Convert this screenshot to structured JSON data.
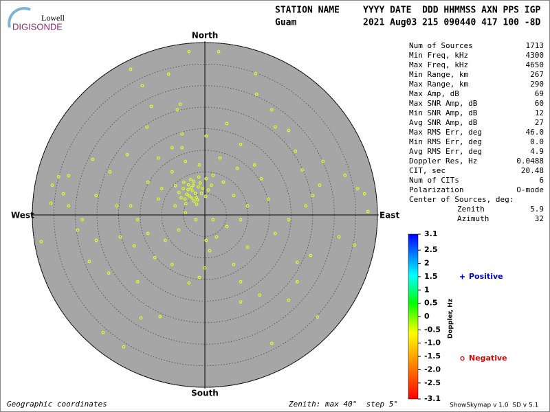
{
  "logo": {
    "top": "Lowell",
    "bottom": "DIGISONDE"
  },
  "header": {
    "row1": [
      "STATION NAME",
      "YYYY DATE  DDD HHMMSS AXN PPS IGP"
    ],
    "row2": [
      "Guam",
      "2021 Aug03 215 090440 417 100 -8D"
    ]
  },
  "stats": {
    "rows": [
      [
        "Num of Sources",
        "1713"
      ],
      [
        "Min Freq, kHz",
        "4300"
      ],
      [
        "Max Freq, kHz",
        "4650"
      ],
      [
        "Min Range, km",
        "267"
      ],
      [
        "Max Range, km",
        "290"
      ],
      [
        "Max Amp, dB",
        "69"
      ],
      [
        "Max SNR Amp, dB",
        "60"
      ],
      [
        "Min SNR Amp, dB",
        "12"
      ],
      [
        "Avg SNR Amp, dB",
        "27"
      ],
      [
        "Max RMS Err, deg",
        "46.0"
      ],
      [
        "Min RMS Err, deg",
        "0.0"
      ],
      [
        "Avg RMS Err, deg",
        "4.9"
      ],
      [
        "Doppler Res, Hz",
        "0.0488"
      ],
      [
        "CIT, sec",
        "20.48"
      ],
      [
        "Num of CITs",
        "6"
      ],
      [
        "Polarization",
        "O-mode"
      ]
    ],
    "center_title": "Center of Sources, deg:",
    "center_rows": [
      [
        "Zenith",
        "5.9"
      ],
      [
        "Azimuth",
        "32"
      ]
    ]
  },
  "footer": {
    "left": "Geographic coordinates",
    "middle": "Zenith: max 40°  step 5°",
    "right": "ShowSkymap v 1.0  SD v 5.1"
  },
  "chart_data": {
    "type": "polar_scatter",
    "directions": {
      "north": "North",
      "south": "South",
      "west": "West",
      "east": "East"
    },
    "xlim": [
      -40,
      40
    ],
    "ylim": [
      -40,
      40
    ],
    "rticks": [
      5,
      10,
      15,
      20,
      25,
      30,
      35,
      40
    ],
    "point_color": "#ddff22",
    "series": [
      {
        "name": "Positive",
        "color": "#0000cc",
        "x": [],
        "values": []
      },
      {
        "name": "Negative",
        "color": "#dd0000",
        "x": [
          -3.7,
          3.2,
          -17.2,
          -14.5,
          -8.4,
          11.8,
          12.0,
          -5.7,
          -13.4,
          16.3,
          -35.4,
          -33.9,
          -35.7,
          -31.6,
          -37.9,
          -29.5,
          -26.8,
          -22.3,
          -14.8,
          -23.6,
          -18.8,
          -10.4,
          -3.7,
          -1.3,
          0,
          8.3,
          12.7,
          15.5,
          19.4,
          21.4,
          26.1,
          24.5,
          31.1,
          34.7,
          35.4,
          37.8,
          37.0,
          32.5,
          26.6,
          27.4,
          22.6,
          21.0,
          19.4,
          15.5,
          5.1,
          0.3,
          -5.3,
          -7.6,
          -10.8,
          -18.0,
          -22.0,
          -25.2,
          -20.4,
          -15.6,
          -13.2,
          -9.2,
          -6.1,
          2.7,
          5.1,
          8.3,
          9.9,
          13.1,
          7.5,
          3.5,
          1.9,
          -10.0,
          -13.2,
          -17.2,
          -28.4,
          -31.6,
          9.9,
          6.7,
          -7.6,
          -11.6,
          -16.4,
          -19.6,
          -25.2,
          16.3,
          19.4,
          23.4,
          25.0,
          14.7,
          0.3,
          1.1,
          1.9,
          -2.1,
          -4.5,
          -12.4,
          -6.4,
          -5.3,
          -4.5,
          -1.3,
          0.3,
          4.3,
          6.7,
          -7.6,
          -10.8,
          -6.9,
          8.3,
          11.5,
          -26.0,
          -32.8,
          21.4,
          8.3,
          -15.6,
          -2.9,
          -1.5,
          -4.2,
          -2.0,
          -3.8,
          -0.8,
          -5.0,
          -2.5,
          -3.3,
          -1.1,
          -4.6,
          0.2,
          -6.0,
          -2.7,
          -1.9,
          -3.6,
          -0.5,
          -4.9,
          -2.2,
          -3.0,
          -1.4,
          -5.5,
          0.8,
          -3.9,
          -2.6,
          -6.8,
          1.5,
          -4.4,
          -1.7,
          -3.2
        ],
        "values": [
          37.9,
          37.9,
          33.8,
          30.0,
          32.7,
          32.8,
          28.0,
          25.7,
          20.4,
          20.4,
          6.9,
          8.9,
          2.7,
          9.1,
          -6.2,
          -3.5,
          -10.8,
          -13.5,
          -23.9,
          -27.3,
          -30.6,
          -23.6,
          -15.8,
          -14.5,
          -12.3,
          -20.2,
          -18.6,
          -29.8,
          -19.8,
          -11.0,
          -23.7,
          -9.4,
          -5.1,
          -7.0,
          6.1,
          0.8,
          4.9,
          9.2,
          6.9,
          12.4,
          10.4,
          14.8,
          19.6,
          24.4,
          21.2,
          18.3,
          18.8,
          15.6,
          13.2,
          14.0,
          10.0,
          4.5,
          2.1,
          -1.1,
          -4.3,
          -5.9,
          -3.5,
          -5.1,
          -2.7,
          -1.1,
          2.1,
          8.4,
          10.8,
          13.2,
          9.2,
          6.1,
          7.6,
          2.1,
          -1.1,
          2.1,
          -7.5,
          -11.5,
          -11.5,
          -9.9,
          -7.2,
          -5.1,
          -5.9,
          -4.3,
          -1.1,
          2.1,
          4.5,
          3.7,
          -5.9,
          -8.3,
          -1.1,
          -1.1,
          0.5,
          25.2,
          24.4,
          15.6,
          12.4,
          11.6,
          8.4,
          7.6,
          4.5,
          10.0,
          3.7,
          2.1,
          16.4,
          11.6,
          12.9,
          4.9,
          -15.5,
          -15.5,
          -15.5,
          5.6,
          6.5,
          4.8,
          4.1,
          7.0,
          5.0,
          6.1,
          3.2,
          8.2,
          7.4,
          3.7,
          4.3,
          5.2,
          6.9,
          2.5,
          4.4,
          6.2,
          7.6,
          5.0,
          3.9,
          8.8,
          4.0,
          5.8,
          5.9,
          7.8,
          6.8,
          6.9,
          2.6,
          3.5,
          6.3
        ]
      }
    ],
    "colorbar": {
      "label": "Doppler, Hz",
      "lim": [
        -3.1,
        3.1
      ],
      "ticks": [
        3.1,
        2.5,
        2,
        1.5,
        1,
        0.5,
        0,
        -0.5,
        {
          "value": -1,
          "label": "-1.0"
        },
        -1.5,
        {
          "value": -2,
          "label": "-2.0"
        },
        -2.5,
        -3.1
      ]
    }
  }
}
